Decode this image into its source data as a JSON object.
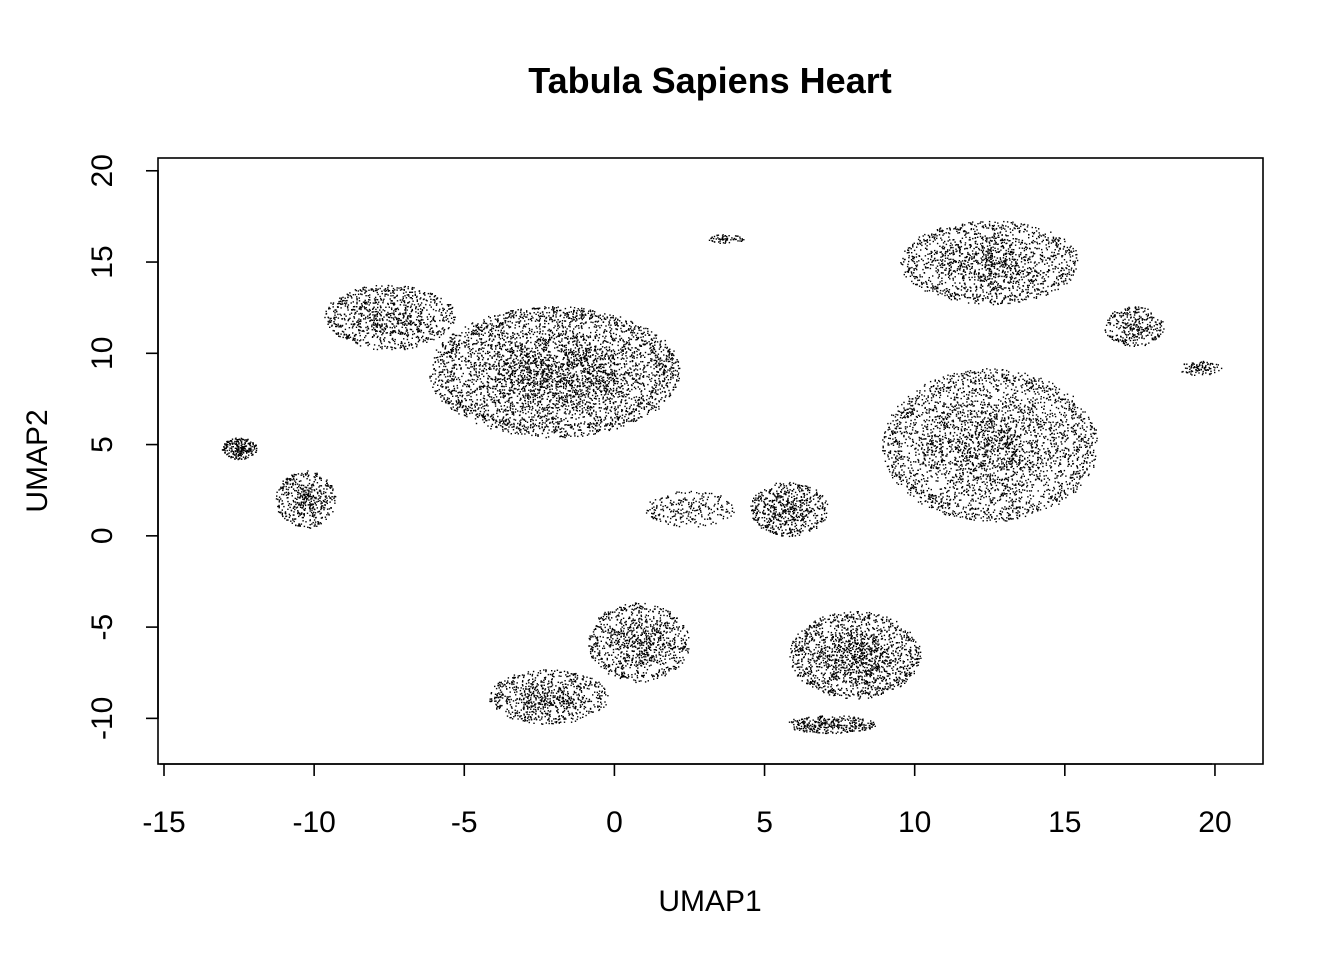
{
  "chart_data": {
    "type": "scatter",
    "title": "Tabula Sapiens Heart",
    "xlabel": "UMAP1",
    "ylabel": "UMAP2",
    "xlim": [
      -15.2,
      21.6
    ],
    "ylim": [
      -12.5,
      20.7
    ],
    "xticks": [
      -15,
      -10,
      -5,
      0,
      5,
      10,
      15,
      20
    ],
    "yticks": [
      -10,
      -5,
      0,
      5,
      10,
      15,
      20
    ],
    "xtick_labels": [
      "-15",
      "-10",
      "-5",
      "0",
      "5",
      "10",
      "15",
      "20"
    ],
    "ytick_labels": [
      "-10",
      "-5",
      "0",
      "5",
      "10",
      "15",
      "20"
    ],
    "marker": "point",
    "marker_color": "#000000",
    "grid": false,
    "legend": "none",
    "point_count_approx": 16000,
    "clusters": [
      {
        "center": [
          -2.0,
          9.0
        ],
        "spread": [
          4.2,
          3.6
        ],
        "weight": 0.26
      },
      {
        "center": [
          -7.5,
          12.0
        ],
        "spread": [
          2.2,
          1.8
        ],
        "weight": 0.06
      },
      {
        "center": [
          -10.3,
          2.0
        ],
        "spread": [
          1.0,
          1.6
        ],
        "weight": 0.03
      },
      {
        "center": [
          -12.5,
          4.8
        ],
        "spread": [
          0.6,
          0.6
        ],
        "weight": 0.015
      },
      {
        "center": [
          12.5,
          15.0
        ],
        "spread": [
          3.0,
          2.3
        ],
        "weight": 0.1
      },
      {
        "center": [
          12.5,
          5.0
        ],
        "spread": [
          3.6,
          4.2
        ],
        "weight": 0.2
      },
      {
        "center": [
          17.3,
          11.5
        ],
        "spread": [
          1.0,
          1.1
        ],
        "weight": 0.02
      },
      {
        "center": [
          19.5,
          9.2
        ],
        "spread": [
          0.7,
          0.4
        ],
        "weight": 0.006
      },
      {
        "center": [
          3.7,
          16.3
        ],
        "spread": [
          0.6,
          0.25
        ],
        "weight": 0.004
      },
      {
        "center": [
          8.0,
          -6.5
        ],
        "spread": [
          2.2,
          2.4
        ],
        "weight": 0.1
      },
      {
        "center": [
          7.2,
          -10.3
        ],
        "spread": [
          1.5,
          0.5
        ],
        "weight": 0.02
      },
      {
        "center": [
          0.8,
          -5.8
        ],
        "spread": [
          1.7,
          2.2
        ],
        "weight": 0.06
      },
      {
        "center": [
          -2.2,
          -8.8
        ],
        "spread": [
          2.0,
          1.5
        ],
        "weight": 0.05
      },
      {
        "center": [
          5.8,
          1.5
        ],
        "spread": [
          1.3,
          1.5
        ],
        "weight": 0.04
      },
      {
        "center": [
          2.5,
          1.5
        ],
        "spread": [
          1.5,
          1.0
        ],
        "weight": 0.015
      }
    ]
  }
}
